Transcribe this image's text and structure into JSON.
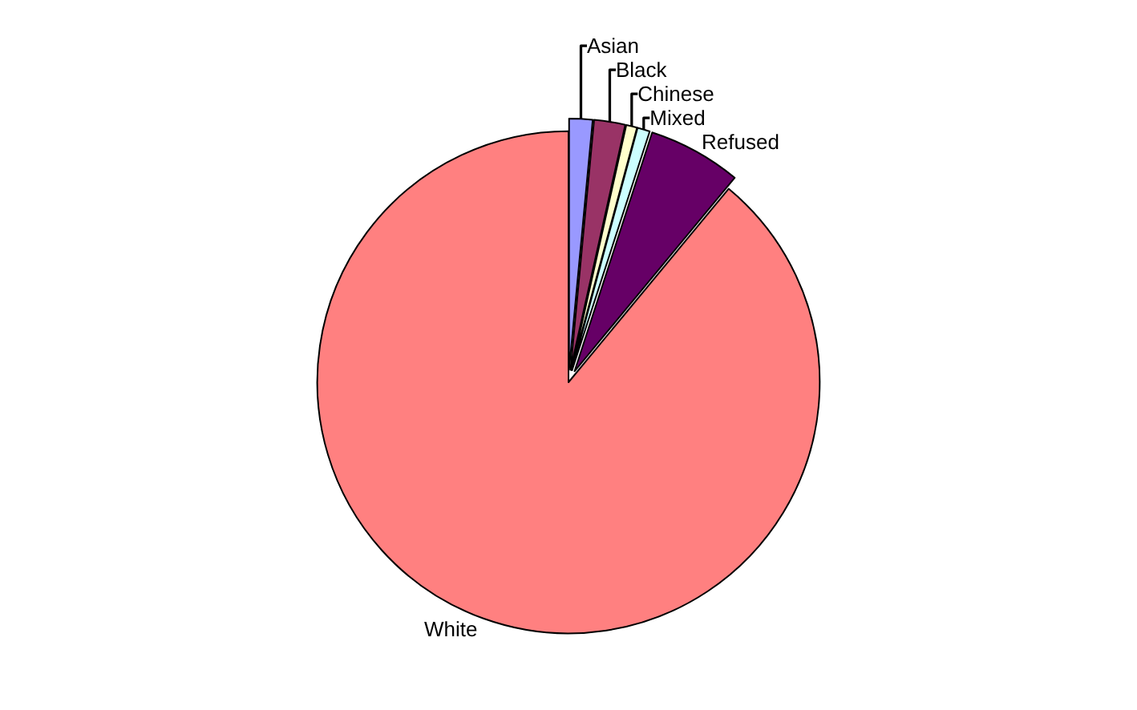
{
  "chart_data": {
    "type": "pie",
    "categories": [
      "Asian",
      "Black",
      "Chinese",
      "Mixed",
      "Refused",
      "White"
    ],
    "values": [
      1.5,
      2,
      0.7,
      0.8,
      6,
      89
    ],
    "colors": [
      "#9999ff",
      "#993366",
      "#ffffcc",
      "#ccffff",
      "#660066",
      "#ff8080"
    ],
    "legend": false
  }
}
